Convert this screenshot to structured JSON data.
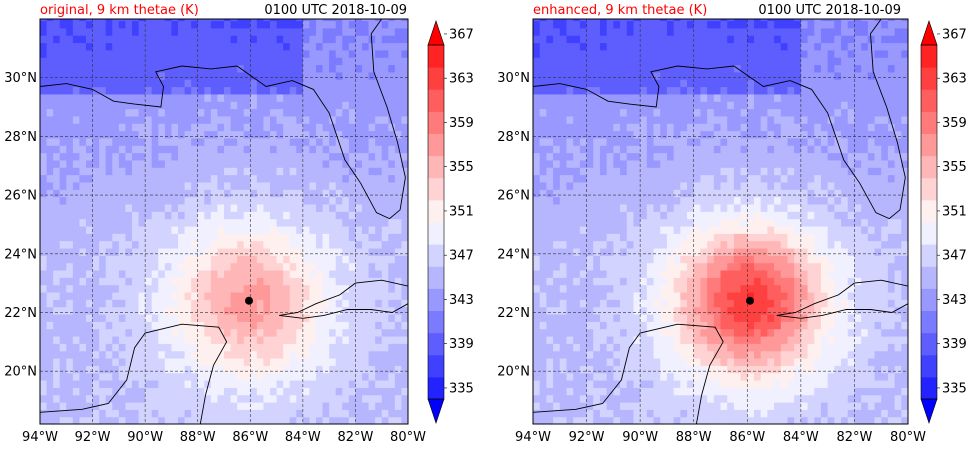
{
  "panels": [
    {
      "id": "original",
      "title": "original, 9 km thetae (K)",
      "time_label": "0100 UTC 2018-10-09",
      "center_marker": {
        "lon": -86.05,
        "lat": 22.4
      },
      "warm_core": {
        "lon": -86.05,
        "lat": 22.4,
        "intensity": 0.55
      }
    },
    {
      "id": "enhanced",
      "title": "enhanced, 9 km thetae (K)",
      "time_label": "0100 UTC 2018-10-09",
      "center_marker": {
        "lon": -85.9,
        "lat": 22.4
      },
      "warm_core": {
        "lon": -85.9,
        "lat": 22.4,
        "intensity": 1.0
      }
    }
  ],
  "map": {
    "lon_range": [
      -94,
      -80
    ],
    "lat_range": [
      18.2,
      32
    ],
    "lon_ticks": [
      -94,
      -92,
      -90,
      -88,
      -86,
      -84,
      -82,
      -80
    ],
    "lat_ticks": [
      20,
      22,
      24,
      26,
      28,
      30
    ],
    "lon_tick_labels": [
      "94°W",
      "92°W",
      "90°W",
      "88°W",
      "86°W",
      "84°W",
      "82°W",
      "80°W"
    ],
    "lat_tick_labels": [
      "20°N",
      "22°N",
      "24°N",
      "26°N",
      "28°N",
      "30°N"
    ],
    "gridlines": true
  },
  "colorbar": {
    "levels": [
      335,
      337,
      339,
      341,
      343,
      345,
      347,
      349,
      351,
      353,
      355,
      357,
      359,
      361,
      363,
      365,
      367
    ],
    "tick_labels": [
      "335",
      "339",
      "343",
      "347",
      "351",
      "355",
      "359",
      "363",
      "367"
    ],
    "extend": "both",
    "colors": {
      "min": "#0000ff",
      "mid": "#ffffff",
      "max": "#ff0000"
    }
  },
  "colors": {
    "title_accent": "#ff0000",
    "coastline": "#000000"
  }
}
